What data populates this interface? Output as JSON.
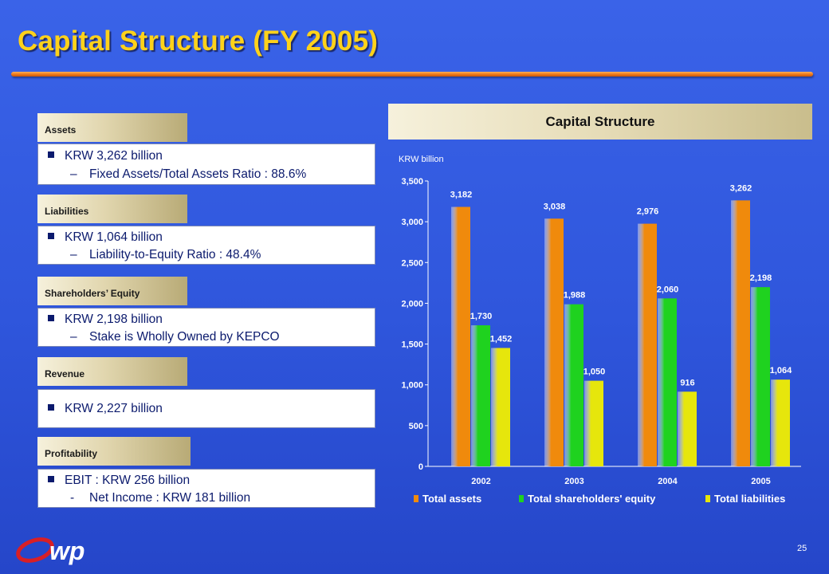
{
  "slide": {
    "title": "Capital Structure (FY 2005)",
    "page_number": "25"
  },
  "sections": [
    {
      "tab": "Assets",
      "lines": [
        {
          "marker": "bullet",
          "text": "KRW 3,262 billion"
        },
        {
          "marker": "–",
          "text": "Fixed Assets/Total Assets Ratio : 88.6%"
        }
      ]
    },
    {
      "tab": "Liabilities",
      "lines": [
        {
          "marker": "bullet",
          "text": "KRW 1,064 billion"
        },
        {
          "marker": "–",
          "text": "Liability-to-Equity Ratio :  48.4%"
        }
      ]
    },
    {
      "tab": "Shareholders’ Equity",
      "lines": [
        {
          "marker": "bullet",
          "text": "KRW 2,198 billion"
        },
        {
          "marker": "–",
          "text": "Stake is Wholly Owned by KEPCO"
        }
      ]
    },
    {
      "tab": "Revenue",
      "lines": [
        {
          "marker": "bullet",
          "text": "KRW 2,227 billion"
        }
      ]
    },
    {
      "tab": "Profitability",
      "lines": [
        {
          "marker": "bullet",
          "text": "EBIT :  KRW 256 billion"
        },
        {
          "marker": "-",
          "text": "Net Income : KRW 181 billion"
        }
      ]
    }
  ],
  "chart_header": "Capital Structure",
  "colors": {
    "background": "#2f56dc",
    "title": "#ffd21a",
    "accent_rule": "#f07c1c",
    "box_text": "#0b1a6d",
    "logo": "#d81f26"
  },
  "chart_data": {
    "type": "bar",
    "title": "Capital Structure",
    "ylabel": "KRW billion",
    "xlabel": "",
    "categories": [
      "2002",
      "2003",
      "2004",
      "2005"
    ],
    "series": [
      {
        "name": "Total assets",
        "values": [
          3182,
          3038,
          2976,
          3262
        ],
        "labels": [
          "3,182",
          "3,038",
          "2,976",
          "3,262"
        ],
        "color": "#f08a0c"
      },
      {
        "name": "Total shareholders' equity",
        "values": [
          1730,
          1988,
          2060,
          2198
        ],
        "labels": [
          "1,730",
          "1,988",
          "2,060",
          "2,198"
        ],
        "color": "#1fd21f"
      },
      {
        "name": "Total liabilities",
        "values": [
          1452,
          1050,
          916,
          1064
        ],
        "labels": [
          "1,452",
          "1,050",
          "916",
          "1,064"
        ],
        "color": "#e6e60c"
      }
    ],
    "ylim": [
      0,
      3500
    ],
    "yticks": [
      0,
      500,
      1000,
      1500,
      2000,
      2500,
      3000,
      3500
    ],
    "ytick_labels": [
      "0",
      "500",
      "1,000",
      "1,500",
      "2,000",
      "2,500",
      "3,000",
      "3,500"
    ],
    "grid": false,
    "legend_position": "bottom"
  }
}
